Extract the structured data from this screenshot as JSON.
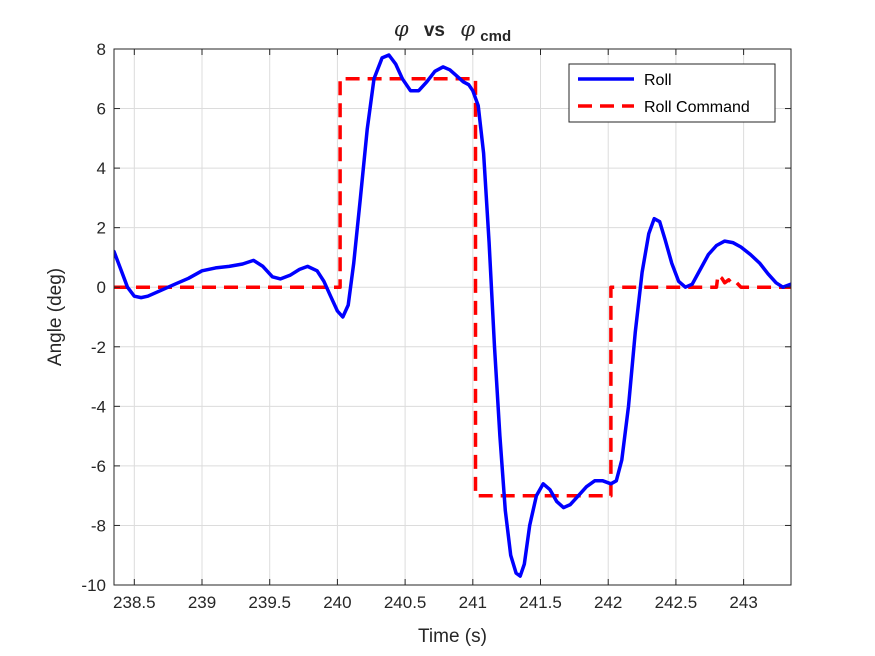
{
  "chart_data": {
    "type": "line",
    "title": {
      "symbol": "φ",
      "vs": "vs",
      "subscript": "cmd"
    },
    "xlabel": "Time (s)",
    "ylabel": "Angle (deg)",
    "xlim": [
      238.35,
      243.35
    ],
    "ylim": [
      -10,
      8
    ],
    "xticks": [
      238.5,
      239,
      239.5,
      240,
      240.5,
      241,
      241.5,
      242,
      242.5,
      243
    ],
    "xtick_labels": [
      "238.5",
      "239",
      "239.5",
      "240",
      "240.5",
      "241",
      "241.5",
      "242",
      "242.5",
      "243"
    ],
    "yticks": [
      -10,
      -8,
      -6,
      -4,
      -2,
      0,
      2,
      4,
      6,
      8
    ],
    "ytick_labels": [
      "-10",
      "-8",
      "-6",
      "-4",
      "-2",
      "0",
      "2",
      "4",
      "6",
      "8"
    ],
    "grid": true,
    "legend": {
      "position": "top-right"
    },
    "series": [
      {
        "name": "Roll",
        "style": "solid",
        "color": "#0000ff",
        "points": [
          [
            238.35,
            1.2
          ],
          [
            238.4,
            0.6
          ],
          [
            238.45,
            0.0
          ],
          [
            238.5,
            -0.3
          ],
          [
            238.55,
            -0.35
          ],
          [
            238.6,
            -0.3
          ],
          [
            238.7,
            -0.1
          ],
          [
            238.8,
            0.1
          ],
          [
            238.9,
            0.3
          ],
          [
            239.0,
            0.55
          ],
          [
            239.1,
            0.65
          ],
          [
            239.2,
            0.7
          ],
          [
            239.3,
            0.78
          ],
          [
            239.38,
            0.9
          ],
          [
            239.45,
            0.7
          ],
          [
            239.52,
            0.35
          ],
          [
            239.58,
            0.28
          ],
          [
            239.65,
            0.4
          ],
          [
            239.72,
            0.6
          ],
          [
            239.78,
            0.7
          ],
          [
            239.85,
            0.55
          ],
          [
            239.9,
            0.2
          ],
          [
            239.95,
            -0.3
          ],
          [
            240.0,
            -0.8
          ],
          [
            240.04,
            -1.0
          ],
          [
            240.08,
            -0.6
          ],
          [
            240.12,
            0.8
          ],
          [
            240.17,
            3.0
          ],
          [
            240.22,
            5.3
          ],
          [
            240.27,
            7.0
          ],
          [
            240.33,
            7.7
          ],
          [
            240.38,
            7.8
          ],
          [
            240.43,
            7.5
          ],
          [
            240.48,
            7.0
          ],
          [
            240.54,
            6.6
          ],
          [
            240.6,
            6.6
          ],
          [
            240.66,
            6.9
          ],
          [
            240.72,
            7.25
          ],
          [
            240.78,
            7.4
          ],
          [
            240.83,
            7.3
          ],
          [
            240.88,
            7.1
          ],
          [
            240.93,
            6.9
          ],
          [
            240.97,
            6.8
          ],
          [
            241.0,
            6.6
          ],
          [
            241.04,
            6.1
          ],
          [
            241.08,
            4.5
          ],
          [
            241.12,
            1.5
          ],
          [
            241.16,
            -2.0
          ],
          [
            241.2,
            -5.0
          ],
          [
            241.24,
            -7.5
          ],
          [
            241.28,
            -9.0
          ],
          [
            241.32,
            -9.6
          ],
          [
            241.35,
            -9.7
          ],
          [
            241.38,
            -9.3
          ],
          [
            241.42,
            -8.0
          ],
          [
            241.47,
            -7.0
          ],
          [
            241.52,
            -6.6
          ],
          [
            241.57,
            -6.8
          ],
          [
            241.62,
            -7.2
          ],
          [
            241.67,
            -7.4
          ],
          [
            241.72,
            -7.3
          ],
          [
            241.78,
            -7.0
          ],
          [
            241.84,
            -6.7
          ],
          [
            241.9,
            -6.5
          ],
          [
            241.96,
            -6.5
          ],
          [
            242.02,
            -6.6
          ],
          [
            242.06,
            -6.5
          ],
          [
            242.1,
            -5.8
          ],
          [
            242.15,
            -4.0
          ],
          [
            242.2,
            -1.5
          ],
          [
            242.25,
            0.5
          ],
          [
            242.3,
            1.8
          ],
          [
            242.34,
            2.3
          ],
          [
            242.38,
            2.2
          ],
          [
            242.42,
            1.6
          ],
          [
            242.47,
            0.8
          ],
          [
            242.52,
            0.2
          ],
          [
            242.57,
            0.0
          ],
          [
            242.62,
            0.1
          ],
          [
            242.68,
            0.6
          ],
          [
            242.74,
            1.1
          ],
          [
            242.8,
            1.4
          ],
          [
            242.86,
            1.55
          ],
          [
            242.92,
            1.5
          ],
          [
            242.98,
            1.35
          ],
          [
            243.05,
            1.1
          ],
          [
            243.12,
            0.8
          ],
          [
            243.18,
            0.45
          ],
          [
            243.24,
            0.15
          ],
          [
            243.29,
            0.0
          ],
          [
            243.35,
            0.1
          ]
        ]
      },
      {
        "name": "Roll Command",
        "style": "dashed",
        "color": "#ff0000",
        "points": [
          [
            238.35,
            0
          ],
          [
            240.02,
            0
          ],
          [
            240.02,
            7
          ],
          [
            241.02,
            7
          ],
          [
            241.02,
            -7
          ],
          [
            242.02,
            -7
          ],
          [
            242.02,
            0
          ],
          [
            242.8,
            0
          ],
          [
            242.81,
            0.4
          ],
          [
            242.84,
            0.3
          ],
          [
            242.86,
            0.15
          ],
          [
            242.89,
            0.25
          ],
          [
            242.92,
            0.1
          ],
          [
            242.95,
            0.15
          ],
          [
            242.98,
            0.0
          ],
          [
            243.35,
            0
          ]
        ]
      }
    ]
  }
}
